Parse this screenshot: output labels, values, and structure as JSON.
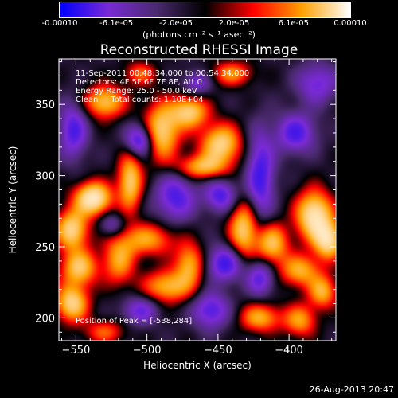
{
  "chart_data": {
    "type": "heatmap",
    "title": "Reconstructed RHESSI Image",
    "xlabel": "Heliocentric X (arcsec)",
    "ylabel": "Heliocentric Y (arcsec)",
    "xlim": [
      -562,
      -367
    ],
    "ylim": [
      184,
      382
    ],
    "xticks": [
      -550,
      -500,
      -450,
      -400
    ],
    "yticks": [
      200,
      250,
      300,
      350
    ],
    "colorbar": {
      "ticks": [
        "-0.00010",
        "-6.1e-05",
        "-2.0e-05",
        "2.0e-05",
        "6.1e-05",
        "0.00010"
      ],
      "values": [
        -0.0001,
        -6.1e-05,
        -2e-05,
        2e-05,
        6.1e-05,
        0.0001
      ],
      "units_label": "(photons cm⁻² s⁻¹ asec⁻²)",
      "colors": [
        "#0000ff",
        "#7a2ad6",
        "#4b2a6f",
        "#000000",
        "#ff0000",
        "#ffa000",
        "#ffffff"
      ]
    },
    "info_lines": [
      "11-Sep-2011 00:48:34.000 to 00:54:34.000",
      "Detectors: 4F 5F 6F 7F 8F, Att 0",
      "Energy Range: 25.0 - 50.0 keV",
      "Clean     Total counts: 1.10E+04"
    ],
    "peak_label": "Position of Peak = [-538,284]",
    "peak": {
      "x": -538,
      "y": 284
    },
    "blobs": [
      {
        "x": -538,
        "y": 284,
        "sx": 9,
        "sy": 8,
        "a": 1.0
      },
      {
        "x": -553,
        "y": 262,
        "sx": 8,
        "sy": 10,
        "a": 0.8
      },
      {
        "x": -548,
        "y": 235,
        "sx": 9,
        "sy": 9,
        "a": 0.7
      },
      {
        "x": -553,
        "y": 210,
        "sx": 8,
        "sy": 9,
        "a": 0.8
      },
      {
        "x": -530,
        "y": 352,
        "sx": 10,
        "sy": 8,
        "a": 0.7
      },
      {
        "x": -512,
        "y": 296,
        "sx": 6,
        "sy": 14,
        "a": 0.75
      },
      {
        "x": -490,
        "y": 331,
        "sx": 9,
        "sy": 14,
        "a": 0.8
      },
      {
        "x": -470,
        "y": 345,
        "sx": 9,
        "sy": 8,
        "a": 0.75
      },
      {
        "x": -448,
        "y": 322,
        "sx": 10,
        "sy": 10,
        "a": 0.8
      },
      {
        "x": -462,
        "y": 306,
        "sx": 12,
        "sy": 6,
        "a": 0.6
      },
      {
        "x": -500,
        "y": 255,
        "sx": 14,
        "sy": 8,
        "a": 0.55
      },
      {
        "x": -520,
        "y": 240,
        "sx": 8,
        "sy": 12,
        "a": 0.55
      },
      {
        "x": -485,
        "y": 222,
        "sx": 12,
        "sy": 8,
        "a": 0.65
      },
      {
        "x": -470,
        "y": 238,
        "sx": 7,
        "sy": 10,
        "a": 0.6
      },
      {
        "x": -432,
        "y": 262,
        "sx": 7,
        "sy": 14,
        "a": 0.75
      },
      {
        "x": -412,
        "y": 252,
        "sx": 8,
        "sy": 10,
        "a": 0.7
      },
      {
        "x": -382,
        "y": 272,
        "sx": 9,
        "sy": 12,
        "a": 0.95
      },
      {
        "x": -372,
        "y": 254,
        "sx": 7,
        "sy": 9,
        "a": 0.8
      },
      {
        "x": -392,
        "y": 233,
        "sx": 10,
        "sy": 8,
        "a": 0.6
      },
      {
        "x": -376,
        "y": 218,
        "sx": 7,
        "sy": 8,
        "a": 0.6
      },
      {
        "x": -420,
        "y": 200,
        "sx": 10,
        "sy": 7,
        "a": 0.6
      },
      {
        "x": -392,
        "y": 198,
        "sx": 8,
        "sy": 8,
        "a": 0.55
      },
      {
        "x": -440,
        "y": 372,
        "sx": 10,
        "sy": 6,
        "a": 0.5
      },
      {
        "x": -530,
        "y": 190,
        "sx": 10,
        "sy": 6,
        "a": 0.4
      },
      {
        "x": -505,
        "y": 372,
        "sx": 8,
        "sy": 6,
        "a": 0.4
      },
      {
        "x": -505,
        "y": 325,
        "sx": 7,
        "sy": 8,
        "a": -0.7
      },
      {
        "x": -480,
        "y": 285,
        "sx": 10,
        "sy": 12,
        "a": -0.55
      },
      {
        "x": -448,
        "y": 286,
        "sx": 8,
        "sy": 8,
        "a": -0.55
      },
      {
        "x": -420,
        "y": 300,
        "sx": 7,
        "sy": 22,
        "a": -0.6
      },
      {
        "x": -395,
        "y": 330,
        "sx": 10,
        "sy": 10,
        "a": -0.55
      },
      {
        "x": -445,
        "y": 238,
        "sx": 9,
        "sy": 9,
        "a": -0.6
      },
      {
        "x": -455,
        "y": 205,
        "sx": 9,
        "sy": 9,
        "a": -0.55
      },
      {
        "x": -420,
        "y": 228,
        "sx": 7,
        "sy": 9,
        "a": -0.5
      },
      {
        "x": -552,
        "y": 332,
        "sx": 7,
        "sy": 14,
        "a": -0.55
      },
      {
        "x": -505,
        "y": 205,
        "sx": 9,
        "sy": 7,
        "a": -0.45
      },
      {
        "x": -525,
        "y": 265,
        "sx": 6,
        "sy": 6,
        "a": -0.35
      },
      {
        "x": -380,
        "y": 365,
        "sx": 10,
        "sy": 10,
        "a": -0.45
      },
      {
        "x": -465,
        "y": 365,
        "sx": 7,
        "sy": 6,
        "a": -0.4
      }
    ]
  },
  "footer": {
    "timestamp": "26-Aug-2013 20:47"
  }
}
